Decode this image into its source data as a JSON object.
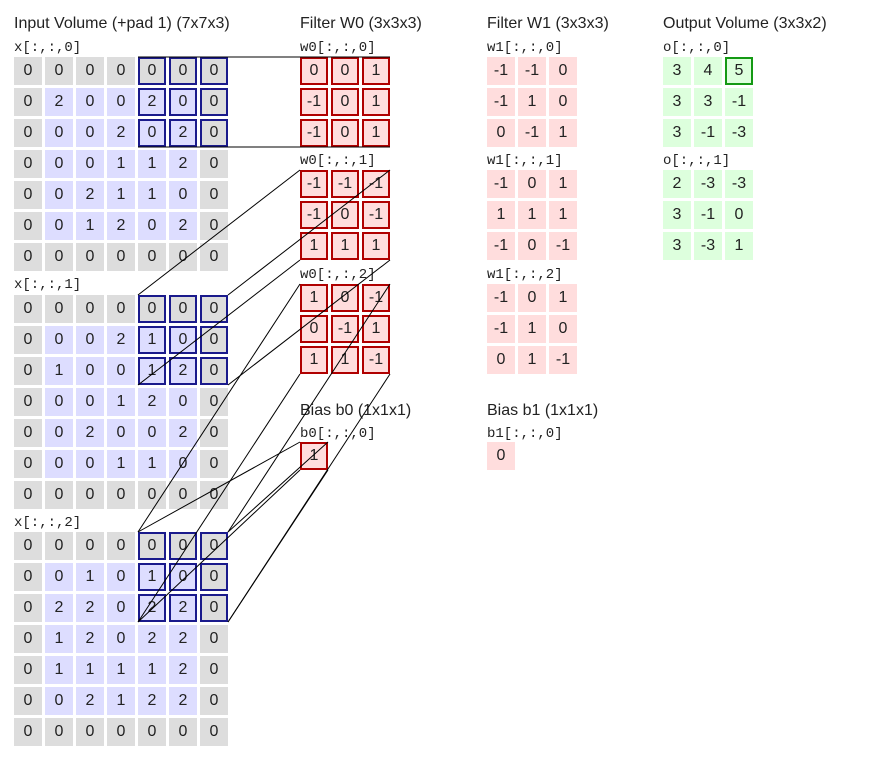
{
  "input": {
    "title": "Input Volume (+pad 1) (7x7x3)",
    "slices": [
      {
        "label": "x[:,:,0]",
        "grid": [
          [
            "0",
            "0",
            "0",
            "0",
            "0",
            "0",
            "0"
          ],
          [
            "0",
            "2",
            "0",
            "0",
            "2",
            "0",
            "0"
          ],
          [
            "0",
            "0",
            "0",
            "2",
            "0",
            "2",
            "0"
          ],
          [
            "0",
            "0",
            "0",
            "1",
            "1",
            "2",
            "0"
          ],
          [
            "0",
            "0",
            "2",
            "1",
            "1",
            "0",
            "0"
          ],
          [
            "0",
            "0",
            "1",
            "2",
            "0",
            "2",
            "0"
          ],
          [
            "0",
            "0",
            "0",
            "0",
            "0",
            "0",
            "0"
          ]
        ]
      },
      {
        "label": "x[:,:,1]",
        "grid": [
          [
            "0",
            "0",
            "0",
            "0",
            "0",
            "0",
            "0"
          ],
          [
            "0",
            "0",
            "0",
            "2",
            "1",
            "0",
            "0"
          ],
          [
            "0",
            "1",
            "0",
            "0",
            "1",
            "2",
            "0"
          ],
          [
            "0",
            "0",
            "0",
            "1",
            "2",
            "0",
            "0"
          ],
          [
            "0",
            "0",
            "2",
            "0",
            "0",
            "2",
            "0"
          ],
          [
            "0",
            "0",
            "0",
            "1",
            "1",
            "0",
            "0"
          ],
          [
            "0",
            "0",
            "0",
            "0",
            "0",
            "0",
            "0"
          ]
        ]
      },
      {
        "label": "x[:,:,2]",
        "grid": [
          [
            "0",
            "0",
            "0",
            "0",
            "0",
            "0",
            "0"
          ],
          [
            "0",
            "0",
            "1",
            "0",
            "1",
            "0",
            "0"
          ],
          [
            "0",
            "2",
            "2",
            "0",
            "2",
            "2",
            "0"
          ],
          [
            "0",
            "1",
            "2",
            "0",
            "2",
            "2",
            "0"
          ],
          [
            "0",
            "1",
            "1",
            "1",
            "1",
            "2",
            "0"
          ],
          [
            "0",
            "0",
            "2",
            "1",
            "2",
            "2",
            "0"
          ],
          [
            "0",
            "0",
            "0",
            "0",
            "0",
            "0",
            "0"
          ]
        ]
      }
    ]
  },
  "filter_w0": {
    "title": "Filter W0 (3x3x3)",
    "slices": [
      {
        "label": "w0[:,:,0]",
        "grid": [
          [
            "0",
            "0",
            "1"
          ],
          [
            "-1",
            "0",
            "1"
          ],
          [
            "-1",
            "0",
            "1"
          ]
        ]
      },
      {
        "label": "w0[:,:,1]",
        "grid": [
          [
            "-1",
            "-1",
            "-1"
          ],
          [
            "-1",
            "0",
            "-1"
          ],
          [
            "1",
            "1",
            "1"
          ]
        ]
      },
      {
        "label": "w0[:,:,2]",
        "grid": [
          [
            "1",
            "0",
            "-1"
          ],
          [
            "0",
            "-1",
            "1"
          ],
          [
            "1",
            "1",
            "-1"
          ]
        ]
      }
    ],
    "bias_title": "Bias b0 (1x1x1)",
    "bias_label": "b0[:,:,0]",
    "bias_value": "1"
  },
  "filter_w1": {
    "title": "Filter W1 (3x3x3)",
    "slices": [
      {
        "label": "w1[:,:,0]",
        "grid": [
          [
            "-1",
            "-1",
            "0"
          ],
          [
            "-1",
            "1",
            "0"
          ],
          [
            "0",
            "-1",
            "1"
          ]
        ]
      },
      {
        "label": "w1[:,:,1]",
        "grid": [
          [
            "-1",
            "0",
            "1"
          ],
          [
            "1",
            "1",
            "1"
          ],
          [
            "-1",
            "0",
            "-1"
          ]
        ]
      },
      {
        "label": "w1[:,:,2]",
        "grid": [
          [
            "-1",
            "0",
            "1"
          ],
          [
            "-1",
            "1",
            "0"
          ],
          [
            "0",
            "1",
            "-1"
          ]
        ]
      }
    ],
    "bias_title": "Bias b1 (1x1x1)",
    "bias_label": "b1[:,:,0]",
    "bias_value": "0"
  },
  "output": {
    "title": "Output Volume (3x3x2)",
    "slices": [
      {
        "label": "o[:,:,0]",
        "grid": [
          [
            "3",
            "4",
            "5"
          ],
          [
            "3",
            "3",
            "-1"
          ],
          [
            "3",
            "-1",
            "-3"
          ]
        ]
      },
      {
        "label": "o[:,:,1]",
        "grid": [
          [
            "2",
            "-3",
            "-3"
          ],
          [
            "3",
            "-1",
            "0"
          ],
          [
            "3",
            "-3",
            "1"
          ]
        ]
      }
    ]
  },
  "colors": {
    "pad": "#dddddd",
    "input": "#ddddff",
    "weight": "#ffdddd",
    "output": "#ddffdd",
    "highlight_input": "#1a1a8c",
    "highlight_filter": "#b00000",
    "highlight_output": "#149914"
  }
}
